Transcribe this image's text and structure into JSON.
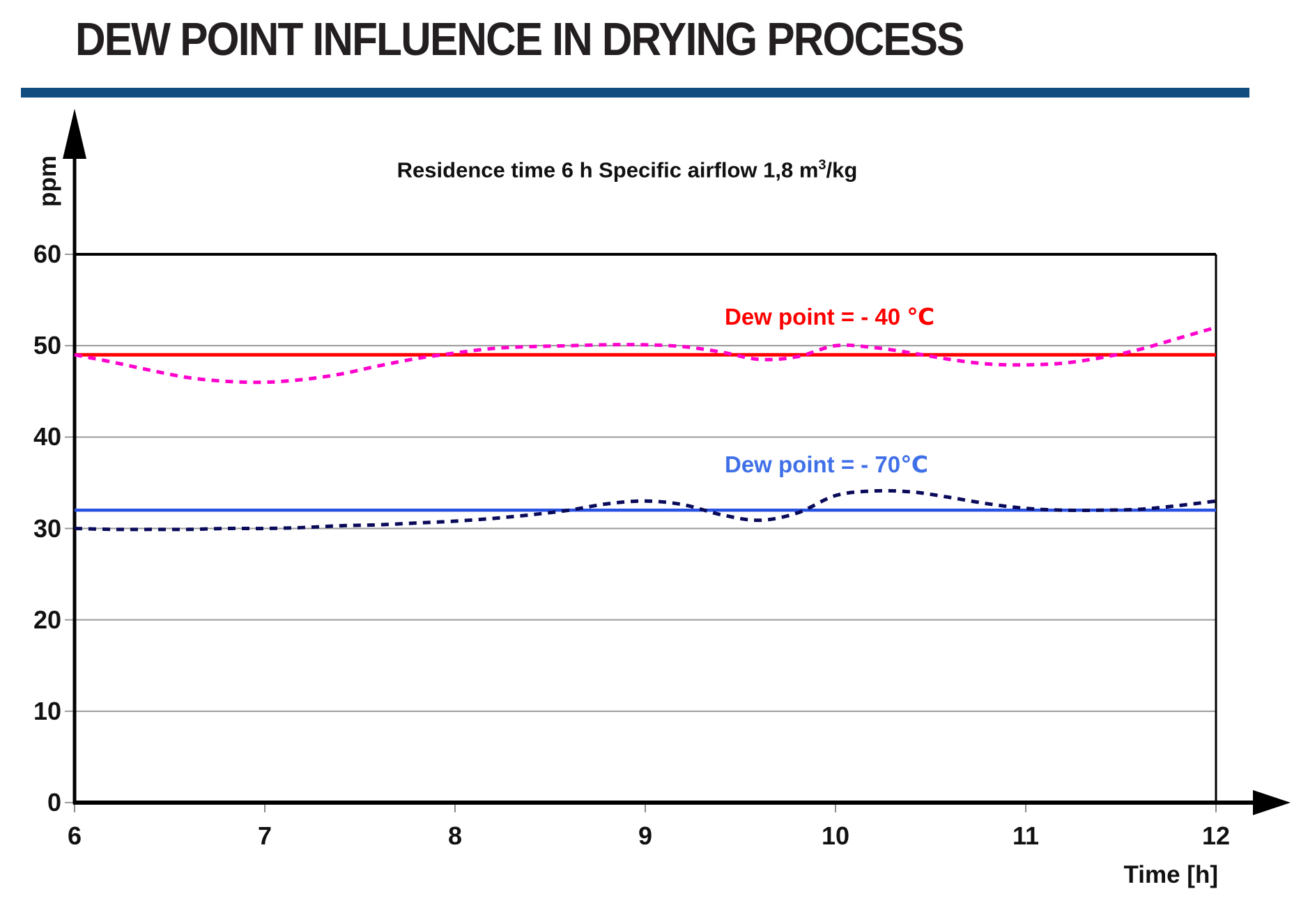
{
  "header": {
    "title": "DEW POINT INFLUENCE IN DRYING PROCESS",
    "rule_color": "#114e7f"
  },
  "chart_data": {
    "type": "line",
    "subtitle": {
      "main": "Residence time 6 h Specific airflow 1,8 m",
      "sup": "3",
      "tail": "/kg"
    },
    "ylabel": "ppm",
    "xlabel": "Time [h]",
    "xlim": [
      6,
      12
    ],
    "ylim": [
      0,
      60
    ],
    "x_ticks": [
      6,
      7,
      8,
      9,
      10,
      11,
      12
    ],
    "y_ticks": [
      0,
      10,
      20,
      30,
      40,
      50,
      60
    ],
    "grid": "horizontal gridlines at 10,20,30,40,50",
    "legend_position": "labels drawn inside plot above each line",
    "series": [
      {
        "name": "dew-point-minus-40-setpoint",
        "label": "Dew point = - 40 ℃",
        "label_color": "#ff0000",
        "color": "#ff0000",
        "style": "solid",
        "type": "constant",
        "value": 49
      },
      {
        "name": "moisture-at-dew-point-minus-40",
        "color": "#ff00cc",
        "style": "dashed",
        "x": [
          6,
          6.2,
          6.4,
          6.6,
          6.8,
          7,
          7.2,
          7.4,
          7.6,
          7.8,
          8,
          8.2,
          8.4,
          8.6,
          8.8,
          9,
          9.2,
          9.4,
          9.6,
          9.8,
          10,
          10.2,
          10.4,
          10.6,
          10.8,
          11,
          11.2,
          11.4,
          11.6,
          11.8,
          12
        ],
        "y": [
          49,
          48.2,
          47.3,
          46.5,
          46.1,
          46,
          46.3,
          46.9,
          47.8,
          48.6,
          49.2,
          49.7,
          49.9,
          50,
          50.1,
          50.1,
          49.9,
          49.3,
          48.5,
          48.8,
          50,
          49.8,
          49.2,
          48.5,
          48,
          47.9,
          48.1,
          48.7,
          49.6,
          50.8,
          52
        ]
      },
      {
        "name": "dew-point-minus-70-setpoint",
        "label": "Dew point = - 70℃",
        "label_color": "#4070e8",
        "color": "#2a52e2",
        "style": "solid",
        "type": "constant",
        "value": 32
      },
      {
        "name": "moisture-at-dew-point-minus-70",
        "color": "#0a0a5a",
        "style": "dashed",
        "x": [
          6,
          6.2,
          6.4,
          6.6,
          6.8,
          7,
          7.2,
          7.4,
          7.6,
          7.8,
          8,
          8.2,
          8.4,
          8.6,
          8.8,
          9,
          9.2,
          9.4,
          9.6,
          9.8,
          10,
          10.2,
          10.4,
          10.6,
          10.8,
          11,
          11.2,
          11.4,
          11.6,
          11.8,
          12
        ],
        "y": [
          30,
          29.9,
          29.9,
          29.9,
          30,
          30,
          30.1,
          30.3,
          30.4,
          30.6,
          30.8,
          31.1,
          31.5,
          32,
          32.7,
          33,
          32.6,
          31.5,
          30.9,
          31.7,
          33.6,
          34.1,
          34,
          33.4,
          32.7,
          32.2,
          32,
          32,
          32.1,
          32.5,
          33
        ]
      }
    ]
  }
}
